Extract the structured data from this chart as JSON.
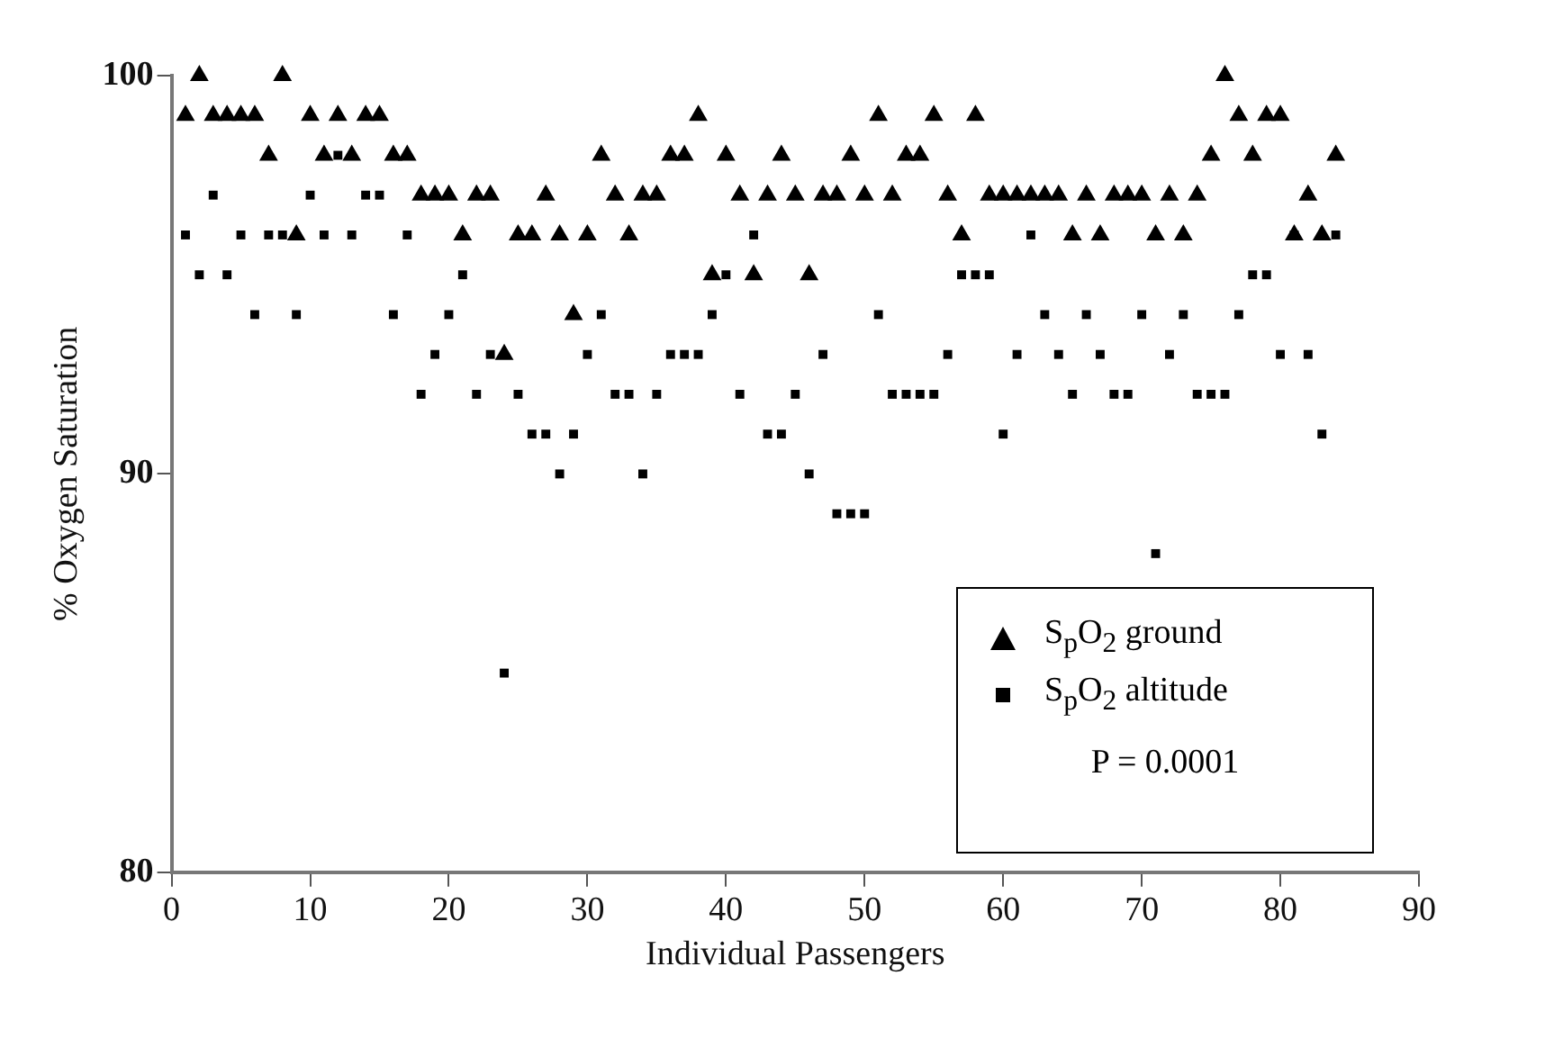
{
  "chart_data": {
    "type": "scatter",
    "xlabel": "Individual Passengers",
    "ylabel": "% Oxygen Saturation",
    "xlim": [
      0,
      90
    ],
    "xticks": [
      0,
      10,
      20,
      30,
      40,
      50,
      60,
      70,
      80,
      90
    ],
    "ylim": [
      80,
      100
    ],
    "yticks": [
      80,
      90,
      100
    ],
    "grid": false,
    "legend": "bottom right",
    "annotations": [
      "P = 0.0001"
    ],
    "series": [
      {
        "name": "S$_{p}$O$_{2}$ ground",
        "color": "#000000",
        "marker": "triangle",
        "x": [
          1,
          2,
          3,
          4,
          5,
          6,
          7,
          8,
          9,
          10,
          11,
          12,
          13,
          14,
          15,
          16,
          17,
          18,
          19,
          20,
          21,
          22,
          23,
          24,
          25,
          26,
          27,
          28,
          29,
          30,
          31,
          32,
          33,
          34,
          35,
          36,
          37,
          38,
          39,
          40,
          41,
          42,
          43,
          44,
          45,
          46,
          47,
          48,
          49,
          50,
          51,
          52,
          53,
          54,
          55,
          56,
          57,
          58,
          59,
          60,
          61,
          62,
          63,
          64,
          65,
          66,
          67,
          68,
          69,
          70,
          71,
          72,
          73,
          74,
          75,
          76,
          77,
          78,
          79,
          80,
          81,
          82,
          83,
          84
        ],
        "values": [
          99,
          100,
          99,
          99,
          99,
          99,
          98,
          100,
          96,
          99,
          98,
          99,
          98,
          99,
          99,
          98,
          98,
          97,
          97,
          97,
          96,
          97,
          97,
          93,
          96,
          96,
          97,
          96,
          94,
          96,
          98,
          97,
          96,
          97,
          97,
          98,
          98,
          99,
          95,
          98,
          97,
          95,
          97,
          98,
          97,
          95,
          97,
          97,
          98,
          97,
          99,
          97,
          98,
          98,
          99,
          97,
          96,
          99,
          97,
          97,
          97,
          97,
          97,
          97,
          96,
          97,
          96,
          97,
          97,
          97,
          96,
          97,
          96,
          97,
          98,
          100,
          99,
          98,
          99,
          99,
          96,
          97,
          96,
          98
        ]
      },
      {
        "name": "S$_{p}$O$_{2}$ altitude",
        "color": "#000000",
        "marker": "square",
        "x": [
          1,
          2,
          3,
          4,
          5,
          6,
          7,
          8,
          9,
          10,
          11,
          12,
          13,
          14,
          15,
          16,
          17,
          18,
          19,
          20,
          21,
          22,
          23,
          24,
          25,
          26,
          27,
          28,
          29,
          30,
          31,
          32,
          33,
          34,
          35,
          36,
          37,
          38,
          39,
          40,
          41,
          42,
          43,
          44,
          45,
          46,
          47,
          48,
          49,
          50,
          51,
          52,
          53,
          54,
          55,
          56,
          57,
          58,
          59,
          60,
          61,
          62,
          63,
          64,
          65,
          66,
          67,
          68,
          69,
          70,
          71,
          72,
          73,
          74,
          75,
          76,
          77,
          78,
          79,
          80,
          81,
          82,
          83,
          84
        ],
        "values": [
          96,
          95,
          97,
          95,
          96,
          94,
          96,
          96,
          94,
          97,
          96,
          98,
          96,
          97,
          97,
          94,
          96,
          92,
          93,
          94,
          95,
          92,
          93,
          85,
          92,
          91,
          91,
          90,
          91,
          93,
          94,
          92,
          92,
          90,
          92,
          93,
          93,
          93,
          94,
          95,
          92,
          96,
          91,
          91,
          92,
          90,
          93,
          89,
          89,
          89,
          94,
          92,
          92,
          92,
          92,
          93,
          95,
          95,
          95,
          91,
          93,
          96,
          94,
          93,
          92,
          94,
          93,
          92,
          92,
          94,
          88,
          93,
          94,
          92,
          92,
          92,
          94,
          95,
          95,
          93,
          96,
          93,
          91,
          96
        ]
      }
    ]
  }
}
